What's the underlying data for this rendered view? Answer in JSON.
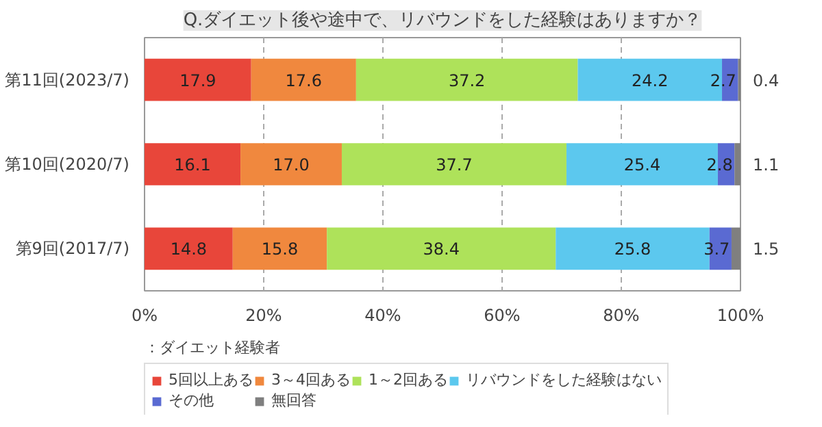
{
  "chart_data": {
    "type": "bar",
    "orientation": "horizontal",
    "stacked": true,
    "title": "Q.ダイエット後や途中で、リバウンドをした経験はありますか？",
    "categories": [
      "第11回(2023/7)",
      "第10回(2020/7)",
      "第9回(2017/7)"
    ],
    "series": [
      {
        "name": "5回以上ある",
        "color": "#e8463a",
        "values": [
          17.9,
          16.1,
          14.8
        ]
      },
      {
        "name": "3～4回ある",
        "color": "#f0883e",
        "values": [
          17.6,
          17.0,
          15.8
        ],
        "value_labels": [
          "17.6",
          "17.0",
          "15.8"
        ]
      },
      {
        "name": "1～2回ある",
        "color": "#aee25a",
        "values": [
          37.2,
          37.7,
          38.4
        ]
      },
      {
        "name": "リバウンドをした経験はない",
        "color": "#5cc8ee",
        "values": [
          24.2,
          25.4,
          25.8
        ]
      },
      {
        "name": "その他",
        "color": "#5a6ad2",
        "values": [
          2.7,
          2.8,
          3.7
        ]
      },
      {
        "name": "無回答",
        "color": "#7f7f7f",
        "values": [
          0.4,
          1.1,
          1.5
        ]
      }
    ],
    "xlim": [
      0,
      100
    ],
    "xticks": [
      {
        "value": 0,
        "label": "0%"
      },
      {
        "value": 20,
        "label": "20%"
      },
      {
        "value": 40,
        "label": "40%"
      },
      {
        "value": 60,
        "label": "60%"
      },
      {
        "value": 80,
        "label": "80%"
      },
      {
        "value": 100,
        "label": "100%"
      }
    ],
    "grid": "x",
    "data_labels": true,
    "legend": "bottom",
    "annotations": [
      "：ダイエット経験者"
    ]
  }
}
